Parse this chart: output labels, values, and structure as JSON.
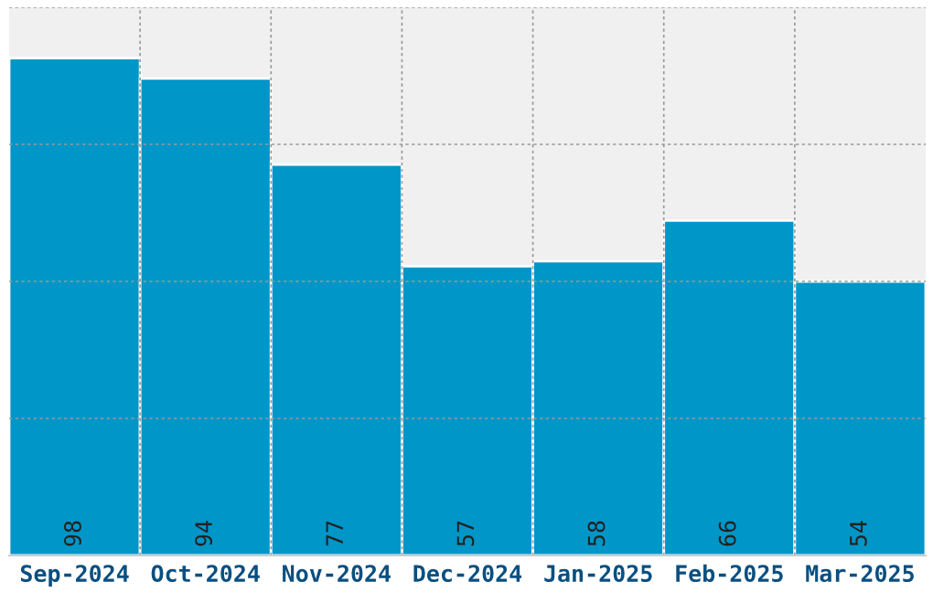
{
  "chart_data": {
    "type": "bar",
    "categories": [
      "Sep-2024",
      "Oct-2024",
      "Nov-2024",
      "Dec-2024",
      "Jan-2025",
      "Feb-2025",
      "Mar-2025"
    ],
    "values": [
      98,
      94,
      77,
      57,
      58,
      66,
      54
    ],
    "color": "#0096c8",
    "ylim": [
      0,
      108
    ],
    "yticks": [
      {
        "value": 0,
        "label": null
      },
      {
        "value": 27,
        "label": null
      },
      {
        "value": 54,
        "label": null
      },
      {
        "value": 81,
        "label": null
      },
      {
        "value": 108,
        "label": null
      }
    ],
    "tick_labels": "x",
    "grid": true,
    "data_labels": true
  }
}
